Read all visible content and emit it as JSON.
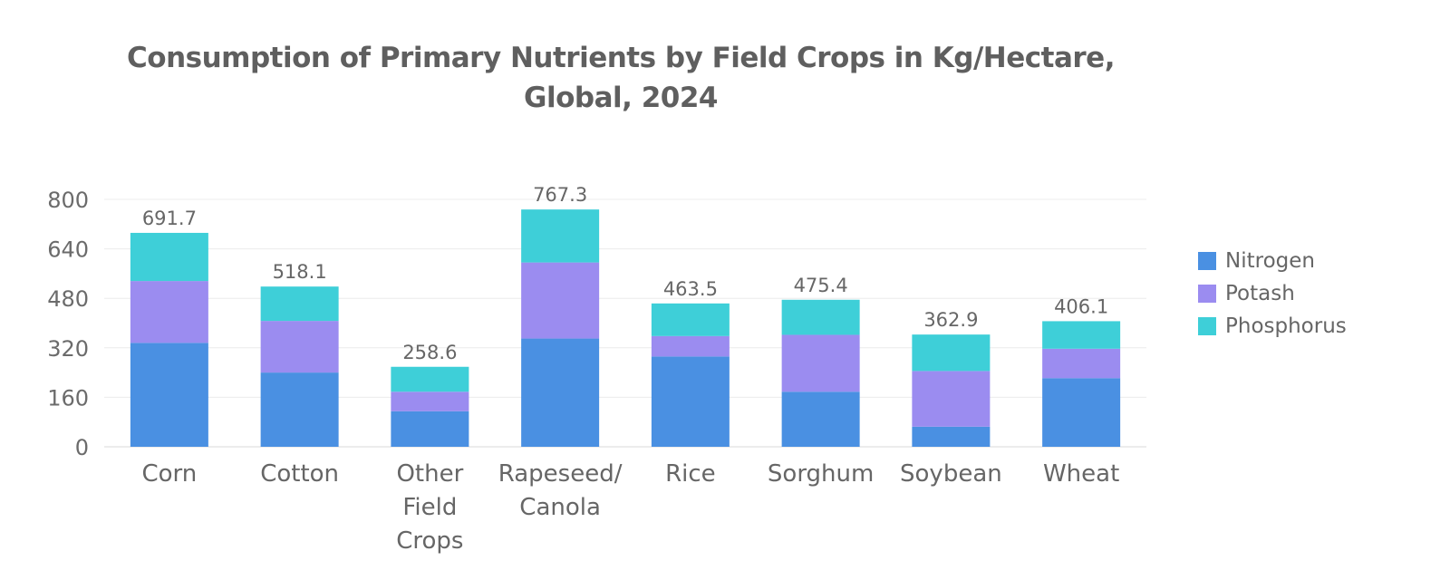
{
  "chart_data": {
    "type": "bar",
    "stacked": true,
    "title": "Consumption of Primary Nutrients by Field Crops in Kg/Hectare,",
    "subtitle": "Global, 2024",
    "xlabel": "",
    "ylabel": "",
    "ylim": [
      0,
      800
    ],
    "yticks": [
      "0",
      "160",
      "320",
      "480",
      "640",
      "800"
    ],
    "grid": true,
    "legend_position": "right",
    "categories": [
      [
        "Corn"
      ],
      [
        "Cotton"
      ],
      [
        "Other",
        "Field",
        "Crops"
      ],
      [
        "Rapeseed/",
        "Canola"
      ],
      [
        "Rice"
      ],
      [
        "Sorghum"
      ],
      [
        "Soybean"
      ],
      [
        "Wheat"
      ]
    ],
    "series": [
      {
        "name": "Nitrogen",
        "color": "#4a90e2",
        "values": [
          336,
          240,
          115,
          350,
          292,
          178,
          65,
          222
        ]
      },
      {
        "name": "Potash",
        "color": "#9b8cf0",
        "values": [
          200,
          167,
          63,
          246,
          66,
          184,
          180,
          95
        ]
      },
      {
        "name": "Phosphorus",
        "color": "#3ecfd8",
        "values": [
          155.7,
          111.1,
          80.6,
          171.3,
          105.5,
          113.4,
          117.9,
          89.1
        ]
      }
    ],
    "totals": [
      "691.7",
      "518.1",
      "258.6",
      "767.3",
      "463.5",
      "475.4",
      "362.9",
      "406.1"
    ]
  }
}
